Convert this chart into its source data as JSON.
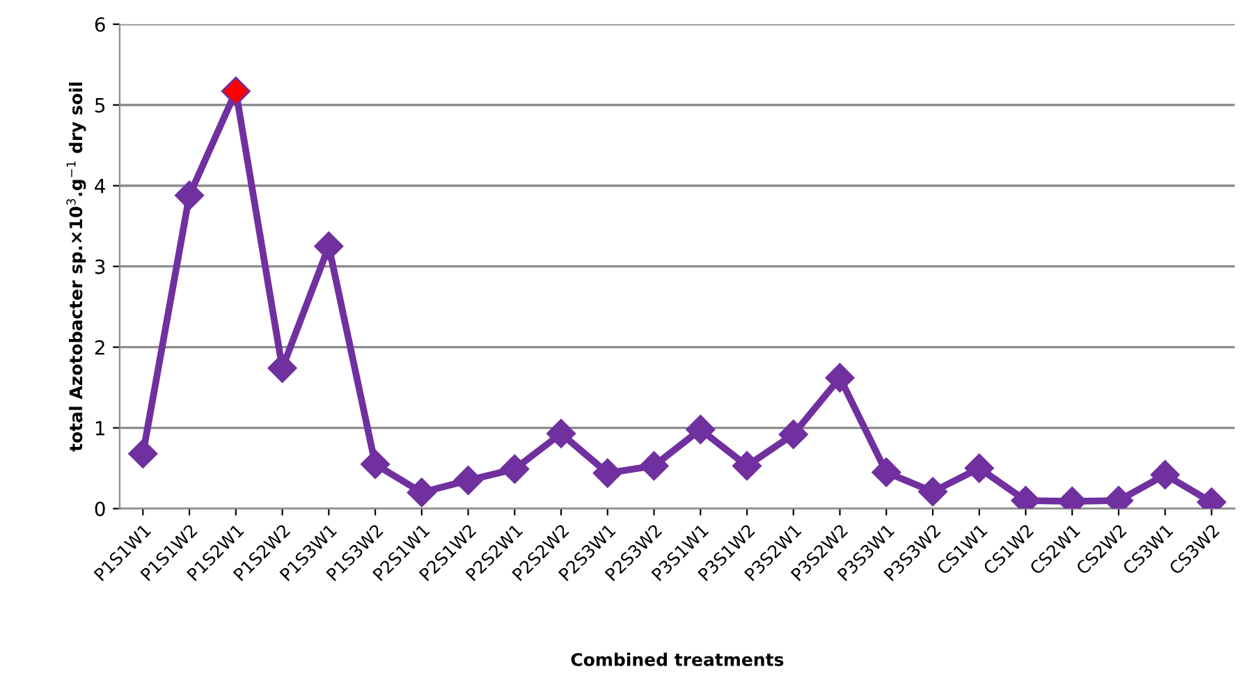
{
  "chart_data": {
    "type": "line",
    "xlabel": "Combined treatments",
    "ylabel": "total Azotobacter sp.×10$^{3}$.g$^{−1}$ dry soil",
    "categories": [
      "P1S1W1",
      "P1S1W2",
      "P1S2W1",
      "P1S2W2",
      "P1S3W1",
      "P1S3W2",
      "P2S1W1",
      "P2S1W2",
      "P2S2W1",
      "P2S2W2",
      "P2S3W1",
      "P2S3W2",
      "P3S1W1",
      "P3S1W2",
      "P3S2W1",
      "P3S2W2",
      "P3S3W1",
      "P3S3W2",
      "CS1W1",
      "CS1W2",
      "CS2W1",
      "CS2W2",
      "CS3W1",
      "CS3W2"
    ],
    "series": [
      {
        "color": "#7030a0",
        "colors": [
          "#7030a0",
          "#7030a0",
          "#ff0000",
          "#7030a0",
          "#7030a0",
          "#7030a0",
          "#7030a0",
          "#7030a0",
          "#7030a0",
          "#7030a0",
          "#7030a0",
          "#7030a0",
          "#7030a0",
          "#7030a0",
          "#7030a0",
          "#7030a0",
          "#7030a0",
          "#7030a0",
          "#7030a0",
          "#7030a0",
          "#7030a0",
          "#7030a0",
          "#7030a0",
          "#7030a0"
        ],
        "values": [
          0.68,
          3.88,
          5.17,
          1.74,
          3.25,
          0.55,
          0.2,
          0.35,
          0.49,
          0.93,
          0.44,
          0.53,
          0.98,
          0.53,
          0.92,
          1.62,
          0.45,
          0.21,
          0.5,
          0.1,
          0.09,
          0.1,
          0.42,
          0.08
        ]
      }
    ],
    "ylim": [
      0,
      6
    ],
    "yticks": [
      0,
      1,
      2,
      3,
      4,
      5,
      6
    ],
    "grid": "y",
    "legend": false,
    "marker": "diamond",
    "line_style": "solid"
  }
}
